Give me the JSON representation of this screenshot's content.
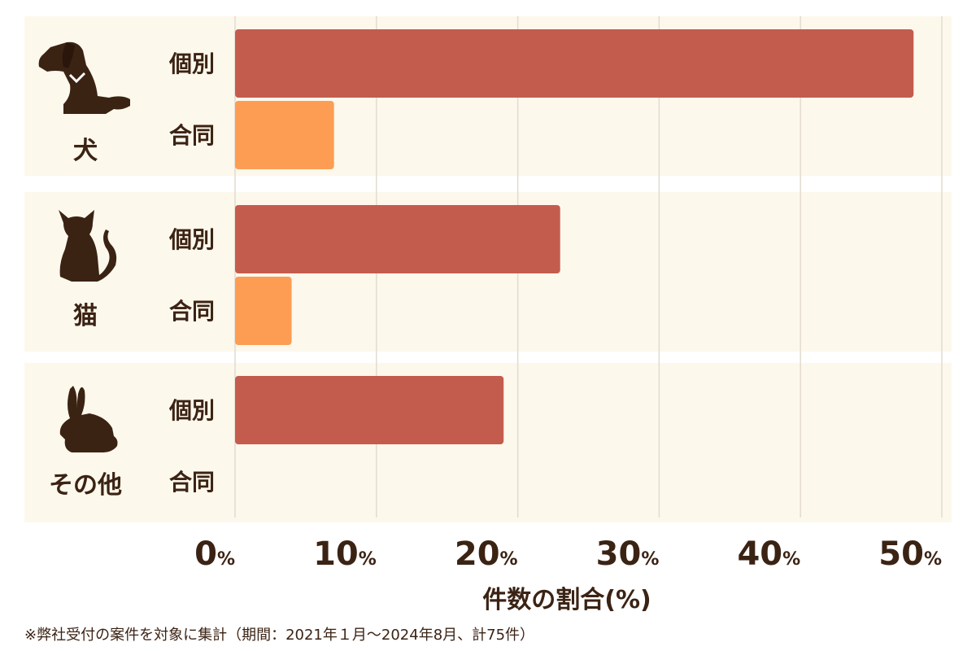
{
  "chart_data": {
    "type": "bar",
    "orientation": "horizontal",
    "groups": [
      {
        "name": "犬",
        "icon": "dog-icon"
      },
      {
        "name": "猫",
        "icon": "cat-icon"
      },
      {
        "name": "その他",
        "icon": "rabbit-icon"
      }
    ],
    "series": [
      {
        "name": "個別",
        "color": "#c45c4e",
        "values": [
          48,
          23,
          19
        ]
      },
      {
        "name": "合同",
        "color": "#fd9d54",
        "values": [
          7,
          4,
          0
        ]
      }
    ],
    "xlim": [
      0,
      50
    ],
    "xticks": [
      0,
      10,
      20,
      30,
      40,
      50
    ],
    "tick_unit": "%",
    "xlabel": "件数の割合(%)",
    "grid": true,
    "panel_color": "#fdf8ec",
    "text_color": "#3b2314"
  },
  "footnote": "※弊社受付の案件を対象に集計（期間：2021年１月〜2024年8月、計75件）"
}
